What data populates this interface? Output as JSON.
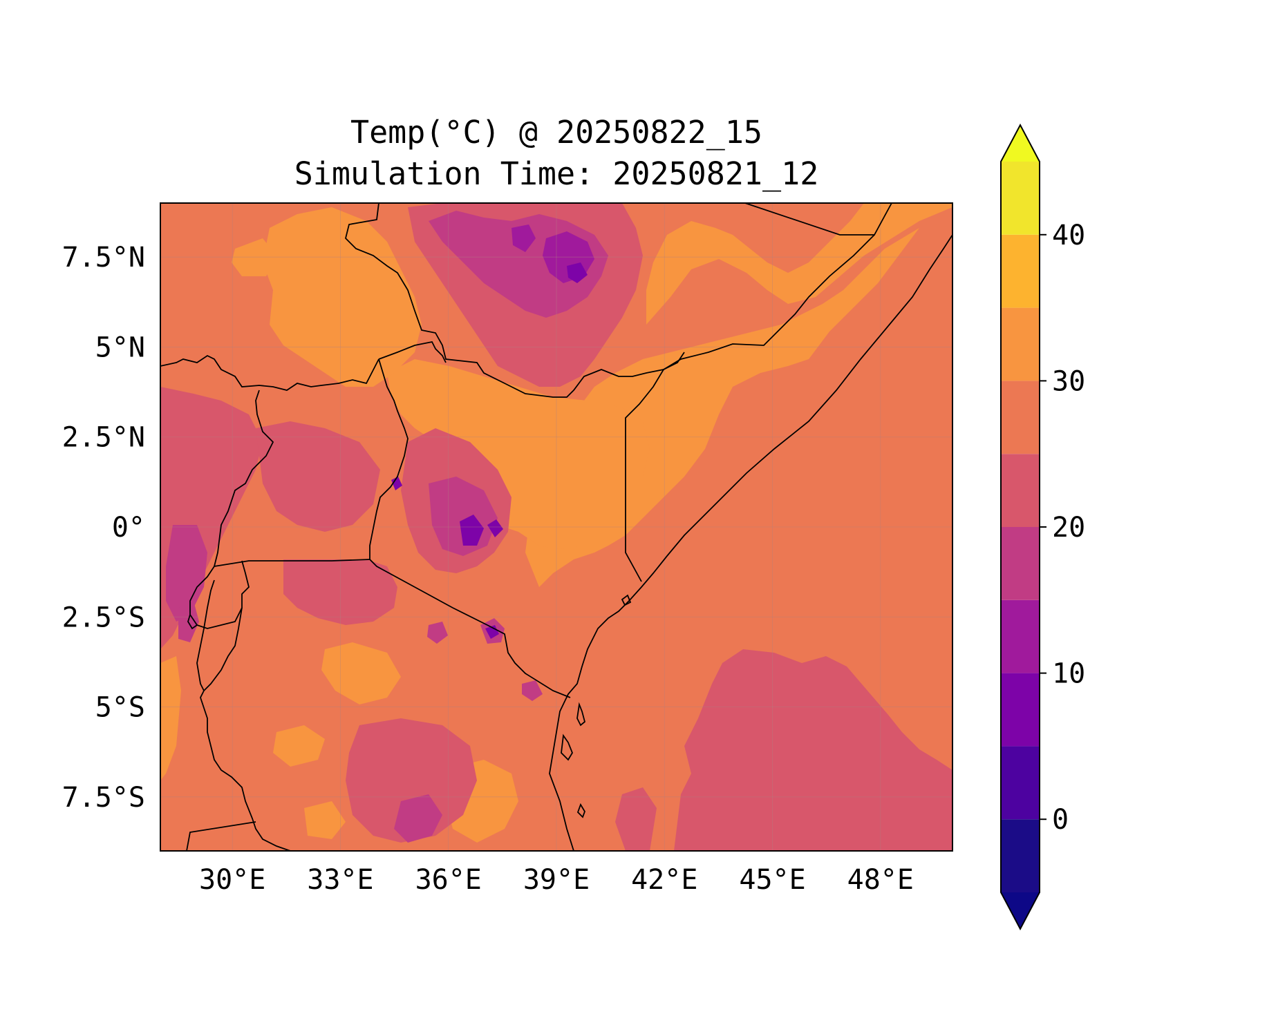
{
  "title": {
    "line1": "Temp(°C) @ 20250822_15",
    "line2": "Simulation Time: 20250821_12"
  },
  "map": {
    "lon_range": [
      28,
      50
    ],
    "lat_range": [
      -9,
      9
    ],
    "x_ticks": [
      30,
      33,
      36,
      39,
      42,
      45,
      48
    ],
    "x_tick_labels": [
      "30°E",
      "33°E",
      "36°E",
      "39°E",
      "42°E",
      "45°E",
      "48°E"
    ],
    "y_ticks": [
      7.5,
      5,
      2.5,
      0,
      -2.5,
      -5,
      -7.5
    ],
    "y_tick_labels": [
      "7.5°N",
      "5°N",
      "2.5°N",
      "0°",
      "2.5°S",
      "5°S",
      "7.5°S"
    ],
    "gridlines": true,
    "borders": true,
    "coastlines": true
  },
  "colorbar": {
    "levels": [
      -5,
      0,
      5,
      10,
      15,
      20,
      25,
      30,
      35,
      40,
      45
    ],
    "colors": [
      "#1b0c87",
      "#4d02a0",
      "#7d03a8",
      "#a01a9c",
      "#c13c84",
      "#d8576b",
      "#ec7853",
      "#f89540",
      "#fdb32f",
      "#f1e52c"
    ],
    "under_color": "#0d0887",
    "over_color": "#f0f921",
    "ticks": [
      0,
      10,
      20,
      30,
      40
    ],
    "tick_labels": [
      "0",
      "10",
      "20",
      "30",
      "40"
    ],
    "extend": "both"
  }
}
